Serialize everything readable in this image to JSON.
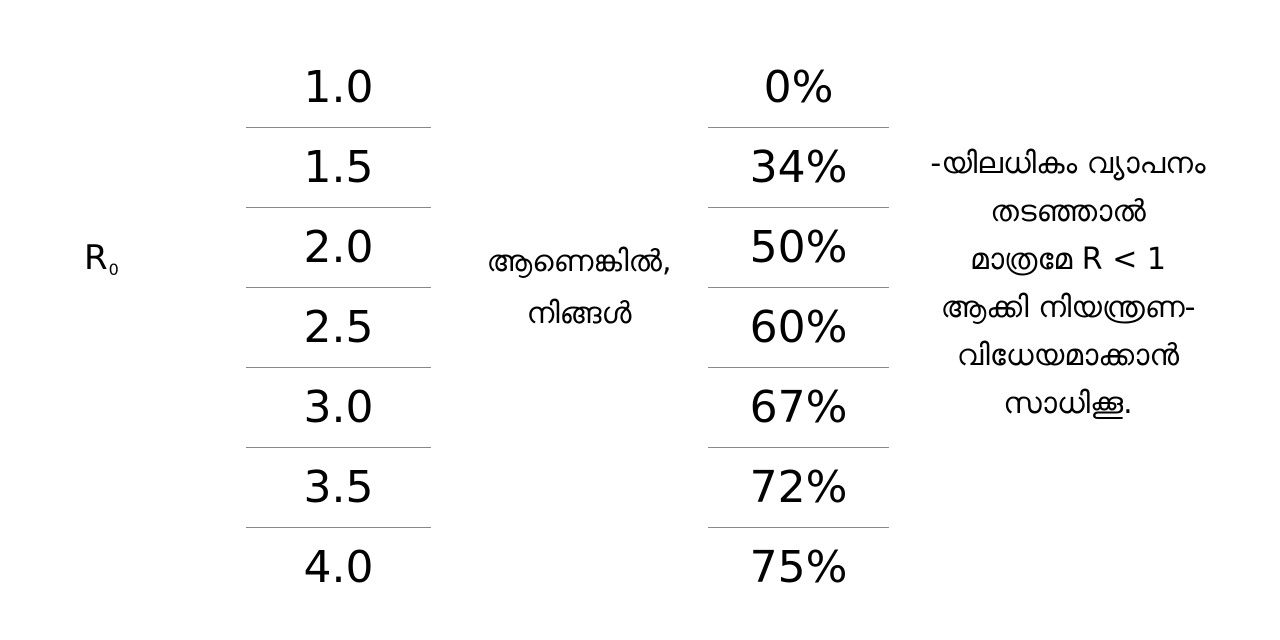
{
  "r0_label": "R",
  "r0_subscript": "0",
  "r_values": [
    "1.0",
    "1.5",
    "2.0",
    "2.5",
    "3.0",
    "3.5",
    "4.0"
  ],
  "percentages": [
    "0%",
    "34%",
    "50%",
    "60%",
    "67%",
    "72%",
    "75%"
  ],
  "middle_text": [
    "ആണെങ്കിൽ,",
    "നിങ്ങൾ"
  ],
  "right_text": [
    "-യിലധികം വ്യാപനം",
    "തടഞ്ഞാൽ",
    "മാത്രമേ R < 1",
    "ആക്കി നിയന്ത്രണ-",
    "വിധേയമാക്കാൻ",
    "സാധിക്കൂ."
  ]
}
